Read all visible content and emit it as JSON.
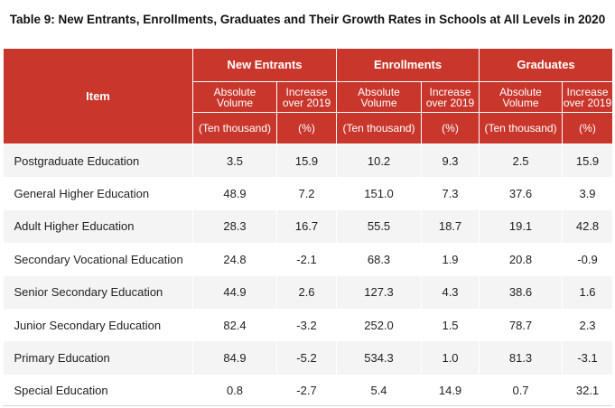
{
  "title": "Table 9: New Entrants, Enrollments, Graduates and Their Growth Rates in Schools at All Levels in 2020",
  "header": {
    "item": "Item",
    "groups": [
      "New Entrants",
      "Enrollments",
      "Graduates"
    ],
    "absolute_line1": "Absolute",
    "absolute_line2": "Volume",
    "increase_line1": "Increase",
    "increase_line2": "over 2019",
    "unit_absolute": "(Ten thousand)",
    "unit_increase": "(%)"
  },
  "rows": [
    {
      "item": "Postgraduate Education",
      "values": [
        "3.5",
        "15.9",
        "10.2",
        "9.3",
        "2.5",
        "15.9"
      ]
    },
    {
      "item": "General Higher Education",
      "values": [
        "48.9",
        "7.2",
        "151.0",
        "7.3",
        "37.6",
        "3.9"
      ]
    },
    {
      "item": "Adult Higher Education",
      "values": [
        "28.3",
        "16.7",
        "55.5",
        "18.7",
        "19.1",
        "42.8"
      ]
    },
    {
      "item": "Secondary Vocational Education",
      "values": [
        "24.8",
        "-2.1",
        "68.3",
        "1.9",
        "20.8",
        "-0.9"
      ]
    },
    {
      "item": "Senior Secondary Education",
      "values": [
        "44.9",
        "2.6",
        "127.3",
        "4.3",
        "38.6",
        "1.6"
      ]
    },
    {
      "item": "Junior Secondary Education",
      "values": [
        "82.4",
        "-3.2",
        "252.0",
        "1.5",
        "78.7",
        "2.3"
      ]
    },
    {
      "item": "Primary Education",
      "values": [
        "84.9",
        "-5.2",
        "534.3",
        "1.0",
        "81.3",
        "-3.1"
      ]
    },
    {
      "item": "Special Education",
      "values": [
        "0.8",
        "-2.7",
        "5.4",
        "14.9",
        "0.7",
        "32.1"
      ]
    }
  ]
}
